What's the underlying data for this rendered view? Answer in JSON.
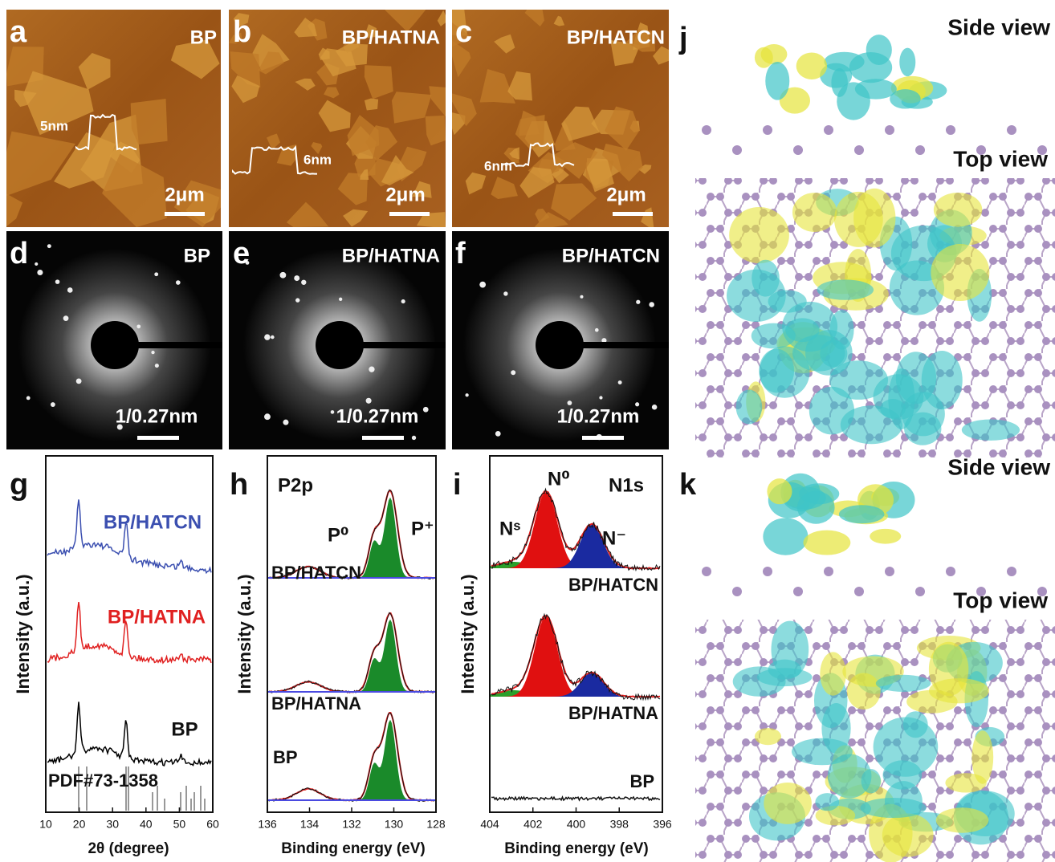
{
  "panels": {
    "a": {
      "label": "a",
      "title": "BP",
      "height": "5nm",
      "scale": "2μm"
    },
    "b": {
      "label": "b",
      "title": "BP/HATNA",
      "height": "6nm",
      "scale": "2μm"
    },
    "c": {
      "label": "c",
      "title": "BP/HATCN",
      "height": "6nm",
      "scale": "2μm"
    },
    "d": {
      "label": "d",
      "title": "BP",
      "scale": "1/0.27nm"
    },
    "e": {
      "label": "e",
      "title": "BP/HATNA",
      "scale": "1/0.27nm"
    },
    "f": {
      "label": "f",
      "title": "BP/HATCN",
      "scale": "1/0.27nm"
    },
    "g": {
      "label": "g",
      "y_label": "Intensity (a.u.)",
      "x_label": "2θ (degree)",
      "xticks": [
        10,
        20,
        30,
        40,
        50,
        60
      ],
      "traces": [
        "BP/HATCN",
        "BP/HATNA",
        "BP"
      ],
      "reference": "PDF#73-1358"
    },
    "h": {
      "label": "h",
      "core": "P2p",
      "peaks": [
        "P⁰",
        "P⁺"
      ],
      "y_label": "Intensity (a.u.)",
      "x_label": "Binding energy (eV)",
      "xticks": [
        136,
        134,
        132,
        130,
        128
      ],
      "traces": [
        "BP/HATCN",
        "BP/HATNA",
        "BP"
      ]
    },
    "i": {
      "label": "i",
      "core": "N1s",
      "peaks": [
        "N⁰",
        "Nˢ",
        "N⁻"
      ],
      "y_label": "Intensity (a.u.)",
      "x_label": "Binding energy (eV)",
      "xticks": [
        404,
        402,
        400,
        398,
        396
      ],
      "traces": [
        "BP/HATCN",
        "BP/HATNA",
        "BP"
      ]
    },
    "j": {
      "label": "j",
      "views": [
        "Side view",
        "Top view"
      ]
    },
    "k": {
      "label": "k",
      "views": [
        "Side view",
        "Top view"
      ]
    }
  }
}
